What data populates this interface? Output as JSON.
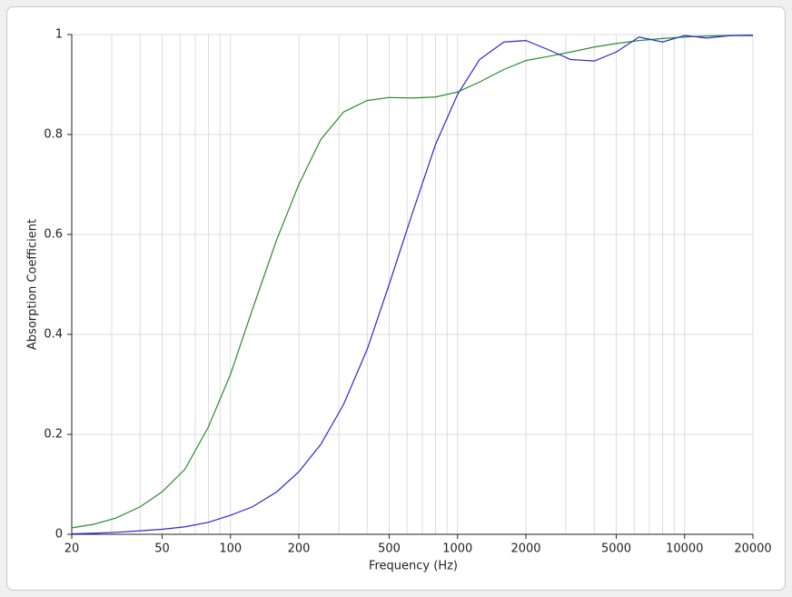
{
  "chart_data": {
    "type": "line",
    "xlabel": "Frequency (Hz)",
    "ylabel": "Absorption Coefficient",
    "x": [
      20,
      25,
      31.5,
      40,
      50,
      63,
      80,
      100,
      125,
      160,
      200,
      250,
      315,
      400,
      500,
      630,
      800,
      1000,
      1250,
      1600,
      2000,
      2500,
      3150,
      4000,
      5000,
      6300,
      8000,
      10000,
      12500,
      16000,
      20000
    ],
    "series": [
      {
        "color": "#2e8b2e",
        "values": [
          0.013,
          0.02,
          0.033,
          0.055,
          0.085,
          0.13,
          0.215,
          0.32,
          0.45,
          0.59,
          0.7,
          0.79,
          0.845,
          0.868,
          0.874,
          0.873,
          0.875,
          0.885,
          0.905,
          0.93,
          0.948,
          0.956,
          0.965,
          0.975,
          0.982,
          0.988,
          0.992,
          0.995,
          0.997,
          0.998,
          0.999
        ]
      },
      {
        "color": "#2a2acc",
        "values": [
          0.001,
          0.002,
          0.004,
          0.007,
          0.01,
          0.015,
          0.024,
          0.038,
          0.055,
          0.085,
          0.125,
          0.18,
          0.26,
          0.37,
          0.5,
          0.64,
          0.78,
          0.88,
          0.95,
          0.985,
          0.988,
          0.97,
          0.95,
          0.947,
          0.965,
          0.995,
          0.985,
          0.998,
          0.993,
          0.998,
          0.998
        ]
      }
    ],
    "xscale": "log",
    "xlim": [
      20,
      20000
    ],
    "xticks": [
      20,
      50,
      100,
      200,
      500,
      1000,
      2000,
      5000,
      10000,
      20000
    ],
    "xgrid": [
      30,
      40,
      60,
      70,
      80,
      90,
      300,
      400,
      600,
      700,
      800,
      900,
      3000,
      4000,
      6000,
      7000,
      8000,
      9000
    ],
    "ylim": [
      0,
      1
    ],
    "yticks": [
      0,
      0.2,
      0.4,
      0.6,
      0.8,
      1
    ],
    "grid": true
  }
}
